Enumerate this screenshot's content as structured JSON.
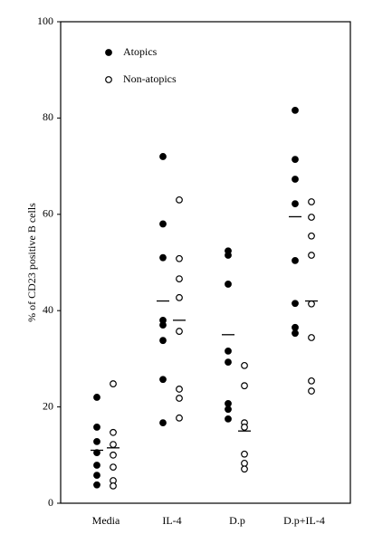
{
  "chart_data": {
    "type": "dot",
    "y_label": "% of CD23 positive B cells",
    "categories": [
      "Media",
      "IL-4",
      "D.p",
      "D.p+IL-4"
    ],
    "ylim": [
      0,
      100
    ],
    "yticks": [
      0,
      20,
      40,
      60,
      80,
      100
    ],
    "legend": "top-left",
    "series": [
      {
        "name": "Atopics",
        "color": "#000000",
        "filled": true,
        "values": [
          [
            22,
            15.8,
            12.8,
            10.5,
            7.9,
            5.8,
            3.8
          ],
          [
            72,
            58,
            51,
            38,
            37,
            33.8,
            25.7,
            16.7
          ],
          [
            52.4,
            51.5,
            45.5,
            31.6,
            29.3,
            20.7,
            19.5,
            17.5
          ],
          [
            81.6,
            71.4,
            67.3,
            62.2,
            50.4,
            41.5,
            36.5,
            35.3
          ]
        ],
        "means": [
          11,
          42,
          35,
          59.5
        ]
      },
      {
        "name": "Non-atopics",
        "color": "#000000",
        "filled": false,
        "values": [
          [
            24.8,
            14.7,
            12.2,
            10,
            7.5,
            4.7,
            3.6
          ],
          [
            63,
            50.8,
            46.6,
            42.7,
            35.7,
            23.7,
            21.8,
            17.7
          ],
          [
            28.6,
            24.4,
            16.7,
            15.8,
            10.2,
            8.3,
            7.1
          ],
          [
            62.6,
            59.4,
            55.5,
            51.5,
            41.4,
            34.4,
            25.4,
            23.3
          ]
        ],
        "means": [
          11.5,
          38,
          15,
          42
        ]
      }
    ]
  }
}
